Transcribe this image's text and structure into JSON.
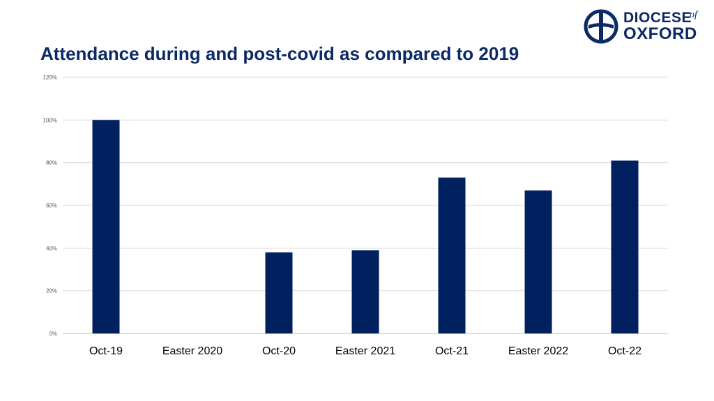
{
  "slide": {
    "title": "Attendance during and post-covid as compared to 2019"
  },
  "logo": {
    "line1": "DIOCESE",
    "of": "of",
    "line2": "OXFORD",
    "color": "#0b2a66"
  },
  "chart_data": {
    "type": "bar",
    "categories": [
      "Oct-19",
      "Easter 2020",
      "Oct-20",
      "Easter 2021",
      "Oct-21",
      "Easter 2022",
      "Oct-22"
    ],
    "values": [
      100,
      null,
      38,
      39,
      73,
      67,
      81
    ],
    "title": "Attendance during and post-covid as compared to 2019",
    "xlabel": "",
    "ylabel": "",
    "ylim": [
      0,
      120
    ],
    "yticks": [
      "0%",
      "20%",
      "40%",
      "60%",
      "80%",
      "100%",
      "120%"
    ],
    "grid": true,
    "legend": "none",
    "bar_color": "#002060"
  }
}
